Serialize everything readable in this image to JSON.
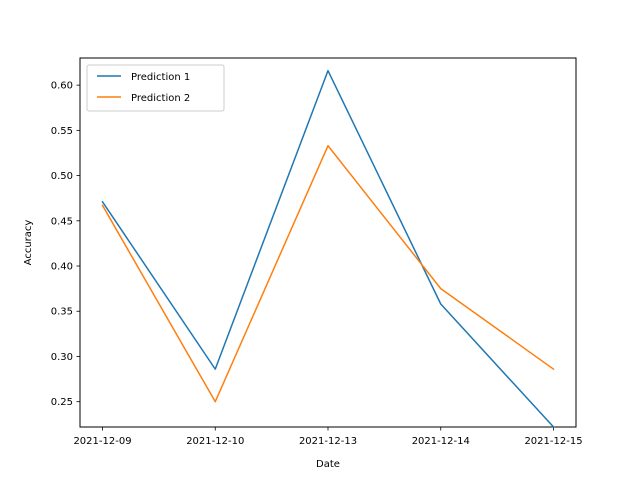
{
  "chart_data": {
    "type": "line",
    "title": "",
    "xlabel": "Date",
    "ylabel": "Accuracy",
    "categories": [
      "2021-12-09",
      "2021-12-10",
      "2021-12-13",
      "2021-12-14",
      "2021-12-15"
    ],
    "ylim": [
      0.222,
      0.63
    ],
    "yticks": [
      "0.25",
      "0.30",
      "0.35",
      "0.40",
      "0.45",
      "0.50",
      "0.55",
      "0.60"
    ],
    "grid": false,
    "legend_position": "top-left",
    "series": [
      {
        "name": "Prediction  1",
        "color": "#1f77b4",
        "values": [
          0.471,
          0.286,
          0.616,
          0.358,
          0.222
        ]
      },
      {
        "name": "Prediction  2",
        "color": "#ff7f0e",
        "values": [
          0.467,
          0.25,
          0.533,
          0.375,
          0.286
        ]
      }
    ]
  }
}
